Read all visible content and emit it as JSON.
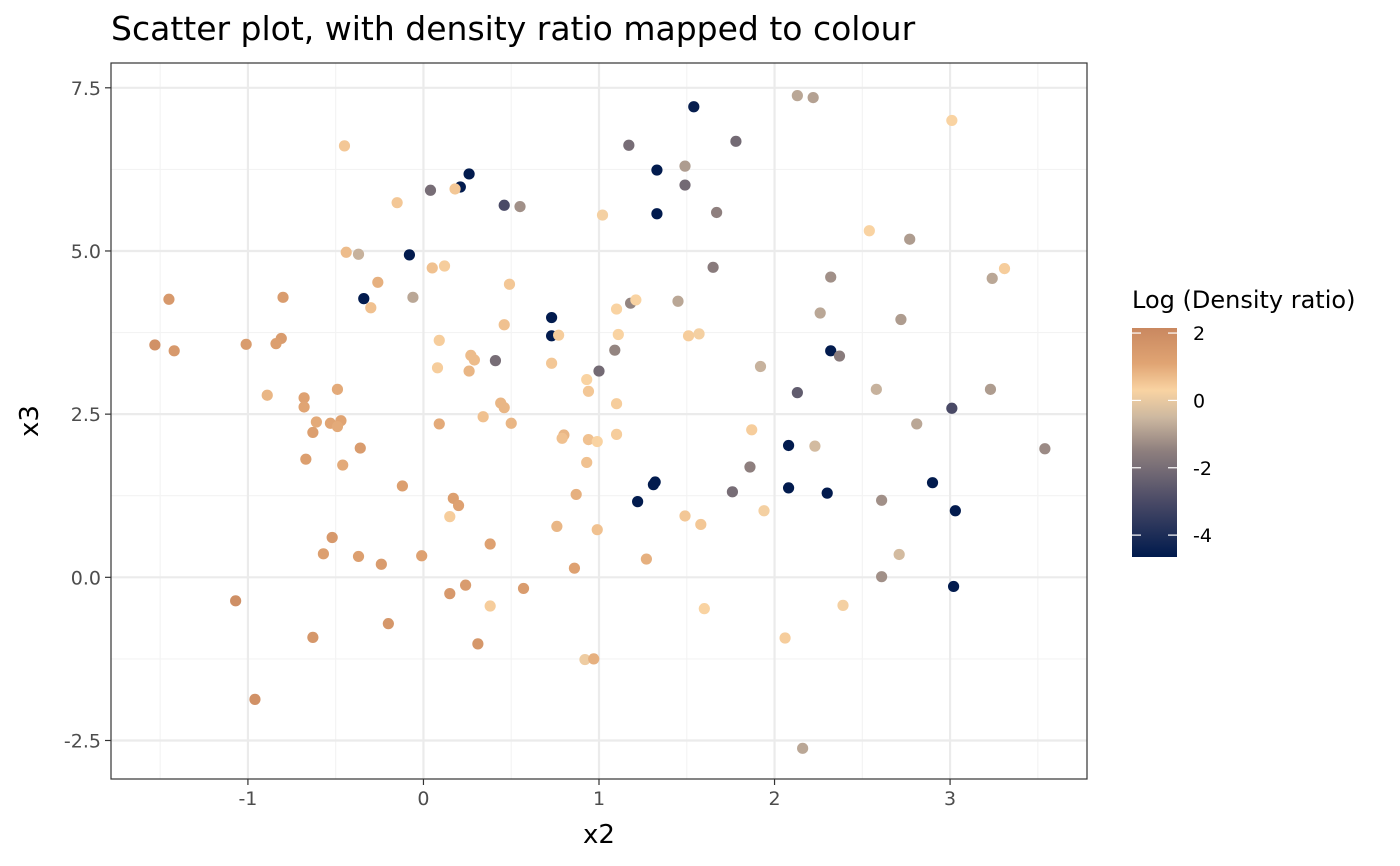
{
  "chart_data": {
    "type": "scatter",
    "title": "Scatter plot, with density ratio mapped to colour",
    "xlabel": "x2",
    "ylabel": "x3",
    "xlim": [
      -1.78,
      3.78
    ],
    "ylim": [
      -3.09,
      7.88
    ],
    "x_ticks": [
      -1,
      0,
      1,
      2,
      3
    ],
    "x_tick_labels": [
      "-1",
      "0",
      "1",
      "2",
      "3"
    ],
    "y_ticks": [
      -2.5,
      0,
      2.5,
      5,
      7.5
    ],
    "y_tick_labels": [
      "-2.5",
      "0.0",
      "2.5",
      "5.0",
      "7.5"
    ],
    "grid": true,
    "legend": {
      "title": "Log (Density ratio)",
      "placement": "right",
      "range": [
        -4.65,
        2.15
      ],
      "breaks": [
        2,
        0,
        -2,
        -4
      ],
      "break_labels": [
        "2",
        "0",
        "-2",
        "-4"
      ],
      "colors": [
        {
          "value": -4.65,
          "color": "#001a4d"
        },
        {
          "value": -3.0,
          "color": "#4a4a66"
        },
        {
          "value": -1.5,
          "color": "#8e7f7e"
        },
        {
          "value": -0.5,
          "color": "#cdb8a0"
        },
        {
          "value": 0.3,
          "color": "#f9d3a2"
        },
        {
          "value": 1.1,
          "color": "#e0a473"
        },
        {
          "value": 2.15,
          "color": "#c98860"
        }
      ]
    },
    "points": [
      {
        "x": 1.54,
        "y": 7.21,
        "c": -4.5
      },
      {
        "x": 2.13,
        "y": 7.38,
        "c": -0.8
      },
      {
        "x": 2.22,
        "y": 7.35,
        "c": -0.9
      },
      {
        "x": 3.01,
        "y": 7.0,
        "c": 0.3
      },
      {
        "x": 1.17,
        "y": 6.62,
        "c": -2.0
      },
      {
        "x": 1.78,
        "y": 6.68,
        "c": -2.1
      },
      {
        "x": -0.45,
        "y": 6.61,
        "c": 0.5
      },
      {
        "x": 1.49,
        "y": 6.3,
        "c": -1.0
      },
      {
        "x": 1.33,
        "y": 6.24,
        "c": -4.6
      },
      {
        "x": 0.26,
        "y": 6.18,
        "c": -4.6
      },
      {
        "x": 0.21,
        "y": 5.98,
        "c": -4.6
      },
      {
        "x": 0.18,
        "y": 5.95,
        "c": 0.5
      },
      {
        "x": 1.49,
        "y": 6.01,
        "c": -2.1
      },
      {
        "x": 0.04,
        "y": 5.93,
        "c": -2.0
      },
      {
        "x": 0.46,
        "y": 5.7,
        "c": -3.0
      },
      {
        "x": 0.55,
        "y": 5.68,
        "c": -1.2
      },
      {
        "x": -0.15,
        "y": 5.74,
        "c": 0.5
      },
      {
        "x": 1.33,
        "y": 5.57,
        "c": -4.6
      },
      {
        "x": 1.67,
        "y": 5.59,
        "c": -1.5
      },
      {
        "x": 1.02,
        "y": 5.55,
        "c": 0.2
      },
      {
        "x": 2.54,
        "y": 5.31,
        "c": 0.3
      },
      {
        "x": 2.77,
        "y": 5.18,
        "c": -1.0
      },
      {
        "x": -0.44,
        "y": 4.98,
        "c": 0.7
      },
      {
        "x": -0.37,
        "y": 4.95,
        "c": -0.6
      },
      {
        "x": -0.08,
        "y": 4.94,
        "c": -4.6
      },
      {
        "x": 0.05,
        "y": 4.74,
        "c": 0.6
      },
      {
        "x": 0.12,
        "y": 4.77,
        "c": 0.4
      },
      {
        "x": 1.65,
        "y": 4.75,
        "c": -1.6
      },
      {
        "x": 3.31,
        "y": 4.73,
        "c": 0.4
      },
      {
        "x": 2.32,
        "y": 4.6,
        "c": -1.2
      },
      {
        "x": 3.24,
        "y": 4.58,
        "c": -0.8
      },
      {
        "x": -0.26,
        "y": 4.52,
        "c": 0.9
      },
      {
        "x": 0.49,
        "y": 4.49,
        "c": 0.5
      },
      {
        "x": -1.45,
        "y": 4.26,
        "c": 1.5
      },
      {
        "x": -0.8,
        "y": 4.29,
        "c": 1.4
      },
      {
        "x": -0.34,
        "y": 4.27,
        "c": -4.6
      },
      {
        "x": -0.06,
        "y": 4.29,
        "c": -0.8
      },
      {
        "x": 1.18,
        "y": 4.2,
        "c": -1.4
      },
      {
        "x": 1.21,
        "y": 4.25,
        "c": 0.3
      },
      {
        "x": 1.45,
        "y": 4.23,
        "c": -0.8
      },
      {
        "x": -0.3,
        "y": 4.13,
        "c": 0.6
      },
      {
        "x": 1.1,
        "y": 4.11,
        "c": 0.3
      },
      {
        "x": 2.26,
        "y": 4.05,
        "c": -0.8
      },
      {
        "x": 0.73,
        "y": 3.98,
        "c": -4.6
      },
      {
        "x": 2.72,
        "y": 3.95,
        "c": -1.0
      },
      {
        "x": 0.46,
        "y": 3.87,
        "c": 0.6
      },
      {
        "x": 0.73,
        "y": 3.7,
        "c": -4.6
      },
      {
        "x": 0.77,
        "y": 3.71,
        "c": 0.4
      },
      {
        "x": 1.11,
        "y": 3.72,
        "c": 0.3
      },
      {
        "x": 1.51,
        "y": 3.7,
        "c": 0.4
      },
      {
        "x": 1.57,
        "y": 3.73,
        "c": 0.2
      },
      {
        "x": -0.81,
        "y": 3.66,
        "c": 1.4
      },
      {
        "x": -0.84,
        "y": 3.58,
        "c": 1.3
      },
      {
        "x": -1.01,
        "y": 3.57,
        "c": 1.4
      },
      {
        "x": -1.53,
        "y": 3.56,
        "c": 1.8
      },
      {
        "x": -1.42,
        "y": 3.47,
        "c": 1.5
      },
      {
        "x": 0.09,
        "y": 3.63,
        "c": 0.4
      },
      {
        "x": 1.09,
        "y": 3.48,
        "c": -1.4
      },
      {
        "x": 2.32,
        "y": 3.47,
        "c": -4.6
      },
      {
        "x": 2.37,
        "y": 3.39,
        "c": -1.6
      },
      {
        "x": 0.27,
        "y": 3.4,
        "c": 0.7
      },
      {
        "x": 0.29,
        "y": 3.33,
        "c": 0.7
      },
      {
        "x": 0.41,
        "y": 3.32,
        "c": -2.0
      },
      {
        "x": 0.73,
        "y": 3.28,
        "c": 0.5
      },
      {
        "x": 0.08,
        "y": 3.21,
        "c": 0.4
      },
      {
        "x": 1.92,
        "y": 3.23,
        "c": -0.6
      },
      {
        "x": 0.26,
        "y": 3.16,
        "c": 0.8
      },
      {
        "x": 1.0,
        "y": 3.16,
        "c": -2.1
      },
      {
        "x": 0.93,
        "y": 3.03,
        "c": 0.3
      },
      {
        "x": -0.49,
        "y": 2.88,
        "c": 1.0
      },
      {
        "x": 0.94,
        "y": 2.85,
        "c": 0.5
      },
      {
        "x": 2.58,
        "y": 2.88,
        "c": -0.6
      },
      {
        "x": 3.23,
        "y": 2.88,
        "c": -1.0
      },
      {
        "x": 2.13,
        "y": 2.83,
        "c": -2.5
      },
      {
        "x": -0.89,
        "y": 2.79,
        "c": 0.8
      },
      {
        "x": -0.68,
        "y": 2.75,
        "c": 1.2
      },
      {
        "x": -0.68,
        "y": 2.61,
        "c": 1.1
      },
      {
        "x": 0.44,
        "y": 2.67,
        "c": 0.8
      },
      {
        "x": 0.46,
        "y": 2.6,
        "c": 0.8
      },
      {
        "x": 1.1,
        "y": 2.66,
        "c": 0.4
      },
      {
        "x": 3.01,
        "y": 2.59,
        "c": -3.0
      },
      {
        "x": 0.34,
        "y": 2.46,
        "c": 0.6
      },
      {
        "x": -0.47,
        "y": 2.4,
        "c": 1.1
      },
      {
        "x": -0.61,
        "y": 2.38,
        "c": 1.0
      },
      {
        "x": -0.53,
        "y": 2.36,
        "c": 1.1
      },
      {
        "x": -0.49,
        "y": 2.31,
        "c": 1.0
      },
      {
        "x": 0.09,
        "y": 2.35,
        "c": 1.0
      },
      {
        "x": 0.5,
        "y": 2.36,
        "c": 0.8
      },
      {
        "x": 2.81,
        "y": 2.35,
        "c": -0.8
      },
      {
        "x": -0.63,
        "y": 2.22,
        "c": 1.3
      },
      {
        "x": 1.87,
        "y": 2.26,
        "c": 0.4
      },
      {
        "x": 0.8,
        "y": 2.18,
        "c": 0.8
      },
      {
        "x": 0.79,
        "y": 2.13,
        "c": 0.6
      },
      {
        "x": 0.94,
        "y": 2.11,
        "c": 0.6
      },
      {
        "x": 0.99,
        "y": 2.08,
        "c": 0.3
      },
      {
        "x": 1.1,
        "y": 2.19,
        "c": 0.4
      },
      {
        "x": 2.08,
        "y": 2.02,
        "c": -4.6
      },
      {
        "x": 2.23,
        "y": 2.01,
        "c": -0.4
      },
      {
        "x": -0.36,
        "y": 1.98,
        "c": 1.4
      },
      {
        "x": 3.54,
        "y": 1.97,
        "c": -1.3
      },
      {
        "x": -0.67,
        "y": 1.81,
        "c": 1.3
      },
      {
        "x": -0.46,
        "y": 1.72,
        "c": 1.0
      },
      {
        "x": 0.93,
        "y": 1.76,
        "c": 0.6
      },
      {
        "x": 1.86,
        "y": 1.69,
        "c": -1.5
      },
      {
        "x": 1.32,
        "y": 1.46,
        "c": -4.6
      },
      {
        "x": 1.31,
        "y": 1.42,
        "c": -4.6
      },
      {
        "x": 2.9,
        "y": 1.45,
        "c": -4.6
      },
      {
        "x": -0.12,
        "y": 1.4,
        "c": 1.3
      },
      {
        "x": 2.08,
        "y": 1.37,
        "c": -4.6
      },
      {
        "x": 1.76,
        "y": 1.31,
        "c": -2.0
      },
      {
        "x": 2.3,
        "y": 1.29,
        "c": -4.6
      },
      {
        "x": 0.87,
        "y": 1.27,
        "c": 0.9
      },
      {
        "x": 0.17,
        "y": 1.21,
        "c": 1.3
      },
      {
        "x": 0.2,
        "y": 1.1,
        "c": 1.2
      },
      {
        "x": 1.22,
        "y": 1.16,
        "c": -4.6
      },
      {
        "x": 2.61,
        "y": 1.18,
        "c": -1.2
      },
      {
        "x": 3.03,
        "y": 1.02,
        "c": -4.6
      },
      {
        "x": 1.94,
        "y": 1.02,
        "c": 0.2
      },
      {
        "x": 0.15,
        "y": 0.93,
        "c": 0.4
      },
      {
        "x": 1.49,
        "y": 0.94,
        "c": 0.5
      },
      {
        "x": 0.76,
        "y": 0.78,
        "c": 0.8
      },
      {
        "x": 1.58,
        "y": 0.81,
        "c": 0.5
      },
      {
        "x": 0.99,
        "y": 0.73,
        "c": 0.6
      },
      {
        "x": -0.52,
        "y": 0.61,
        "c": 1.5
      },
      {
        "x": 0.38,
        "y": 0.51,
        "c": 1.2
      },
      {
        "x": -0.57,
        "y": 0.36,
        "c": 1.3
      },
      {
        "x": -0.37,
        "y": 0.32,
        "c": 1.3
      },
      {
        "x": -0.01,
        "y": 0.33,
        "c": 1.2
      },
      {
        "x": 2.71,
        "y": 0.35,
        "c": -0.4
      },
      {
        "x": 1.27,
        "y": 0.28,
        "c": 0.9
      },
      {
        "x": -0.24,
        "y": 0.2,
        "c": 1.4
      },
      {
        "x": 0.86,
        "y": 0.14,
        "c": 1.2
      },
      {
        "x": 2.61,
        "y": 0.01,
        "c": -1.2
      },
      {
        "x": 0.24,
        "y": -0.12,
        "c": 1.4
      },
      {
        "x": 3.02,
        "y": -0.14,
        "c": -4.6
      },
      {
        "x": 0.57,
        "y": -0.17,
        "c": 1.4
      },
      {
        "x": 0.15,
        "y": -0.25,
        "c": 1.5
      },
      {
        "x": -1.07,
        "y": -0.36,
        "c": 1.9
      },
      {
        "x": 0.38,
        "y": -0.44,
        "c": 0.4
      },
      {
        "x": 2.39,
        "y": -0.43,
        "c": 0.2
      },
      {
        "x": 1.6,
        "y": -0.48,
        "c": 0.3
      },
      {
        "x": -0.2,
        "y": -0.71,
        "c": 1.6
      },
      {
        "x": -0.63,
        "y": -0.92,
        "c": 1.6
      },
      {
        "x": 2.06,
        "y": -0.93,
        "c": 0.4
      },
      {
        "x": 0.31,
        "y": -1.02,
        "c": 1.6
      },
      {
        "x": 0.92,
        "y": -1.26,
        "c": 0.1
      },
      {
        "x": 0.97,
        "y": -1.25,
        "c": 0.9
      },
      {
        "x": -0.96,
        "y": -1.87,
        "c": 1.8
      },
      {
        "x": 2.16,
        "y": -2.62,
        "c": -0.8
      }
    ]
  }
}
